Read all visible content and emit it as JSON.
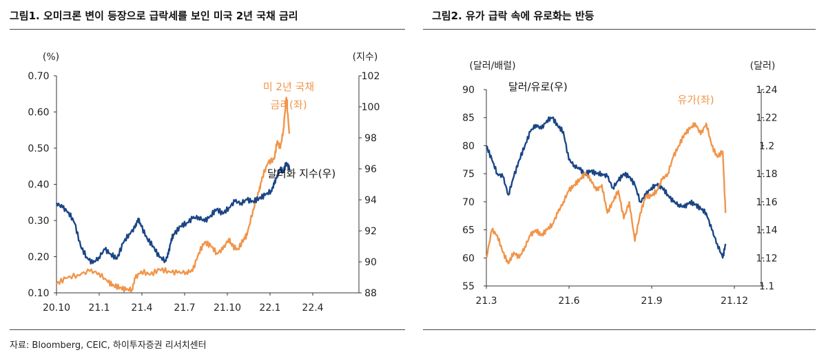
{
  "source": "자료: Bloomberg, CEIC, 하이투자증권 리서치센터",
  "colors": {
    "navy": "#1b4585",
    "orange": "#f0954a",
    "axis": "#333333"
  },
  "chart_data": [
    {
      "type": "line",
      "title": "그림1.  오미크론 변이 등장으로 급락세를 보인 미국 2년 국채 금리",
      "left_axis": {
        "unit": "(%)",
        "min": 0.1,
        "max": 0.7,
        "ticks": [
          "0.70",
          "0.60",
          "0.50",
          "0.40",
          "0.30",
          "0.20",
          "0.10"
        ]
      },
      "right_axis": {
        "unit": "(지수)",
        "min": 88,
        "max": 102,
        "ticks": [
          "102",
          "100",
          "98",
          "96",
          "94",
          "92",
          "90",
          "88"
        ]
      },
      "x_axis": {
        "ticks": [
          "20.10",
          "21.1",
          "21.4",
          "21.7",
          "21.10",
          "22.1",
          "22.4"
        ]
      },
      "series": [
        {
          "name": "미 2년 국채\n금리(좌)",
          "name_lines": [
            "미 2년 국채",
            "금리(좌)"
          ],
          "axis": "left",
          "color": "#f0954a",
          "points": [
            [
              0.0,
              0.125
            ],
            [
              0.03,
              0.14
            ],
            [
              0.07,
              0.15
            ],
            [
              0.11,
              0.16
            ],
            [
              0.14,
              0.155
            ],
            [
              0.17,
              0.13
            ],
            [
              0.19,
              0.12
            ],
            [
              0.21,
              0.115
            ],
            [
              0.23,
              0.108
            ],
            [
              0.25,
              0.11
            ],
            [
              0.26,
              0.14
            ],
            [
              0.28,
              0.16
            ],
            [
              0.31,
              0.15
            ],
            [
              0.34,
              0.165
            ],
            [
              0.37,
              0.16
            ],
            [
              0.4,
              0.155
            ],
            [
              0.43,
              0.158
            ],
            [
              0.45,
              0.16
            ],
            [
              0.47,
              0.21
            ],
            [
              0.49,
              0.24
            ],
            [
              0.51,
              0.23
            ],
            [
              0.53,
              0.21
            ],
            [
              0.55,
              0.22
            ],
            [
              0.57,
              0.25
            ],
            [
              0.58,
              0.23
            ],
            [
              0.6,
              0.22
            ],
            [
              0.62,
              0.25
            ],
            [
              0.63,
              0.26
            ],
            [
              0.65,
              0.33
            ],
            [
              0.67,
              0.38
            ],
            [
              0.68,
              0.42
            ],
            [
              0.7,
              0.46
            ],
            [
              0.72,
              0.47
            ],
            [
              0.73,
              0.52
            ],
            [
              0.74,
              0.5
            ],
            [
              0.75,
              0.55
            ],
            [
              0.76,
              0.64
            ],
            [
              0.77,
              0.54
            ]
          ]
        },
        {
          "name": "달러화 지수(우)",
          "axis": "right",
          "color": "#1b4585",
          "points": [
            [
              0.0,
              93.8
            ],
            [
              0.02,
              93.5
            ],
            [
              0.04,
              93.2
            ],
            [
              0.06,
              92.5
            ],
            [
              0.08,
              91.0
            ],
            [
              0.1,
              90.3
            ],
            [
              0.12,
              89.9
            ],
            [
              0.14,
              90.3
            ],
            [
              0.16,
              90.8
            ],
            [
              0.18,
              90.5
            ],
            [
              0.2,
              90.2
            ],
            [
              0.22,
              91.2
            ],
            [
              0.24,
              91.8
            ],
            [
              0.26,
              92.2
            ],
            [
              0.27,
              92.8
            ],
            [
              0.28,
              92.3
            ],
            [
              0.3,
              91.5
            ],
            [
              0.32,
              91.0
            ],
            [
              0.34,
              90.3
            ],
            [
              0.36,
              90.1
            ],
            [
              0.37,
              90.5
            ],
            [
              0.38,
              91.5
            ],
            [
              0.39,
              91.8
            ],
            [
              0.41,
              92.3
            ],
            [
              0.43,
              92.5
            ],
            [
              0.45,
              92.8
            ],
            [
              0.47,
              92.9
            ],
            [
              0.49,
              92.6
            ],
            [
              0.51,
              93.0
            ],
            [
              0.53,
              93.4
            ],
            [
              0.55,
              93.1
            ],
            [
              0.57,
              93.5
            ],
            [
              0.59,
              93.9
            ],
            [
              0.61,
              93.8
            ],
            [
              0.63,
              94.0
            ],
            [
              0.65,
              93.9
            ],
            [
              0.67,
              94.1
            ],
            [
              0.69,
              94.3
            ],
            [
              0.71,
              94.6
            ],
            [
              0.72,
              95.0
            ],
            [
              0.73,
              95.6
            ],
            [
              0.74,
              96.0
            ],
            [
              0.75,
              95.8
            ],
            [
              0.76,
              96.4
            ],
            [
              0.77,
              96.0
            ]
          ]
        }
      ]
    },
    {
      "type": "line",
      "title": "그림2. 유가 급락 속에 유로화는 반등",
      "left_axis": {
        "unit": "(달러/배럴)",
        "min": 55,
        "max": 90,
        "ticks": [
          "90",
          "85",
          "80",
          "75",
          "70",
          "65",
          "60",
          "55"
        ]
      },
      "right_axis": {
        "unit": "(달러)",
        "min": 1.1,
        "max": 1.24,
        "ticks": [
          "1.24",
          "1.22",
          "1.2",
          "1.18",
          "1.16",
          "1.14",
          "1.12",
          "1.1"
        ]
      },
      "x_axis": {
        "ticks": [
          "21.3",
          "21.6",
          "21.9",
          "21.12"
        ]
      },
      "series": [
        {
          "name": "달러/유로(우)",
          "axis": "right",
          "color": "#1b4585",
          "points": [
            [
              0.0,
              1.2
            ],
            [
              0.02,
              1.19
            ],
            [
              0.04,
              1.18
            ],
            [
              0.06,
              1.178
            ],
            [
              0.08,
              1.165
            ],
            [
              0.1,
              1.178
            ],
            [
              0.12,
              1.19
            ],
            [
              0.14,
              1.2
            ],
            [
              0.16,
              1.21
            ],
            [
              0.18,
              1.215
            ],
            [
              0.2,
              1.212
            ],
            [
              0.22,
              1.218
            ],
            [
              0.24,
              1.22
            ],
            [
              0.26,
              1.214
            ],
            [
              0.28,
              1.21
            ],
            [
              0.3,
              1.19
            ],
            [
              0.32,
              1.186
            ],
            [
              0.34,
              1.183
            ],
            [
              0.36,
              1.18
            ],
            [
              0.38,
              1.182
            ],
            [
              0.4,
              1.18
            ],
            [
              0.42,
              1.18
            ],
            [
              0.44,
              1.178
            ],
            [
              0.46,
              1.17
            ],
            [
              0.48,
              1.175
            ],
            [
              0.5,
              1.18
            ],
            [
              0.52,
              1.178
            ],
            [
              0.54,
              1.172
            ],
            [
              0.56,
              1.16
            ],
            [
              0.58,
              1.165
            ],
            [
              0.6,
              1.17
            ],
            [
              0.62,
              1.172
            ],
            [
              0.64,
              1.17
            ],
            [
              0.66,
              1.165
            ],
            [
              0.68,
              1.16
            ],
            [
              0.7,
              1.158
            ],
            [
              0.72,
              1.156
            ],
            [
              0.74,
              1.16
            ],
            [
              0.76,
              1.158
            ],
            [
              0.78,
              1.155
            ],
            [
              0.8,
              1.152
            ],
            [
              0.82,
              1.14
            ],
            [
              0.84,
              1.13
            ],
            [
              0.86,
              1.12
            ],
            [
              0.87,
              1.13
            ]
          ]
        },
        {
          "name": "유가(좌)",
          "axis": "left",
          "color": "#f0954a",
          "points": [
            [
              0.0,
              60
            ],
            [
              0.02,
              65
            ],
            [
              0.04,
              64
            ],
            [
              0.06,
              61
            ],
            [
              0.08,
              59
            ],
            [
              0.1,
              61
            ],
            [
              0.12,
              60
            ],
            [
              0.14,
              62
            ],
            [
              0.16,
              64
            ],
            [
              0.18,
              65
            ],
            [
              0.2,
              64
            ],
            [
              0.22,
              65
            ],
            [
              0.24,
              66
            ],
            [
              0.26,
              68
            ],
            [
              0.28,
              70
            ],
            [
              0.3,
              72
            ],
            [
              0.32,
              73
            ],
            [
              0.34,
              74
            ],
            [
              0.36,
              75
            ],
            [
              0.38,
              74
            ],
            [
              0.4,
              72
            ],
            [
              0.42,
              73
            ],
            [
              0.44,
              68
            ],
            [
              0.46,
              70
            ],
            [
              0.48,
              72
            ],
            [
              0.5,
              67
            ],
            [
              0.52,
              70
            ],
            [
              0.54,
              63
            ],
            [
              0.56,
              68
            ],
            [
              0.58,
              71
            ],
            [
              0.6,
              71
            ],
            [
              0.62,
              72
            ],
            [
              0.64,
              74
            ],
            [
              0.66,
              75
            ],
            [
              0.68,
              78
            ],
            [
              0.7,
              80
            ],
            [
              0.72,
              82
            ],
            [
              0.74,
              83
            ],
            [
              0.76,
              84
            ],
            [
              0.78,
              82
            ],
            [
              0.8,
              84
            ],
            [
              0.82,
              80
            ],
            [
              0.84,
              78
            ],
            [
              0.86,
              79
            ],
            [
              0.87,
              68
            ]
          ]
        }
      ]
    }
  ]
}
